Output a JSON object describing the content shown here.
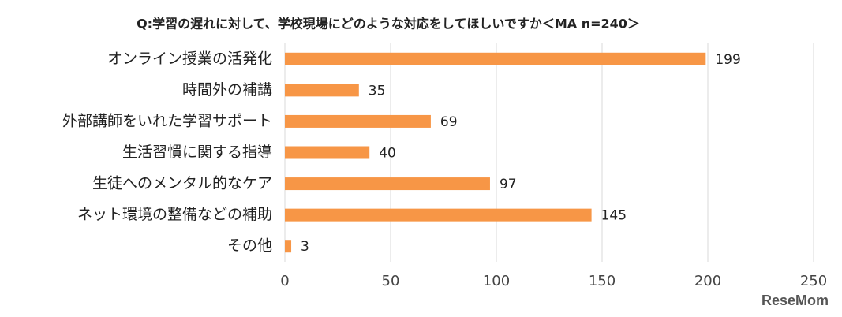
{
  "chart_data": {
    "type": "bar",
    "orientation": "horizontal",
    "title": "Q:学習の遅れに対して、学校現場にどのような対応をしてほしいですか＜MA n=240＞",
    "categories": [
      "オンライン授業の活発化",
      "時間外の補講",
      "外部講師をいれた学習サポート",
      "生活習慣に関する指導",
      "生徒へのメンタル的なケア",
      "ネット環境の整備などの補助",
      "その他"
    ],
    "values": [
      199,
      35,
      69,
      40,
      97,
      145,
      3
    ],
    "color": "#f79646",
    "xlim": [
      0,
      250
    ],
    "xticks": [
      0,
      50,
      100,
      150,
      200,
      250
    ],
    "grid": true,
    "watermark": "ReseMom"
  }
}
